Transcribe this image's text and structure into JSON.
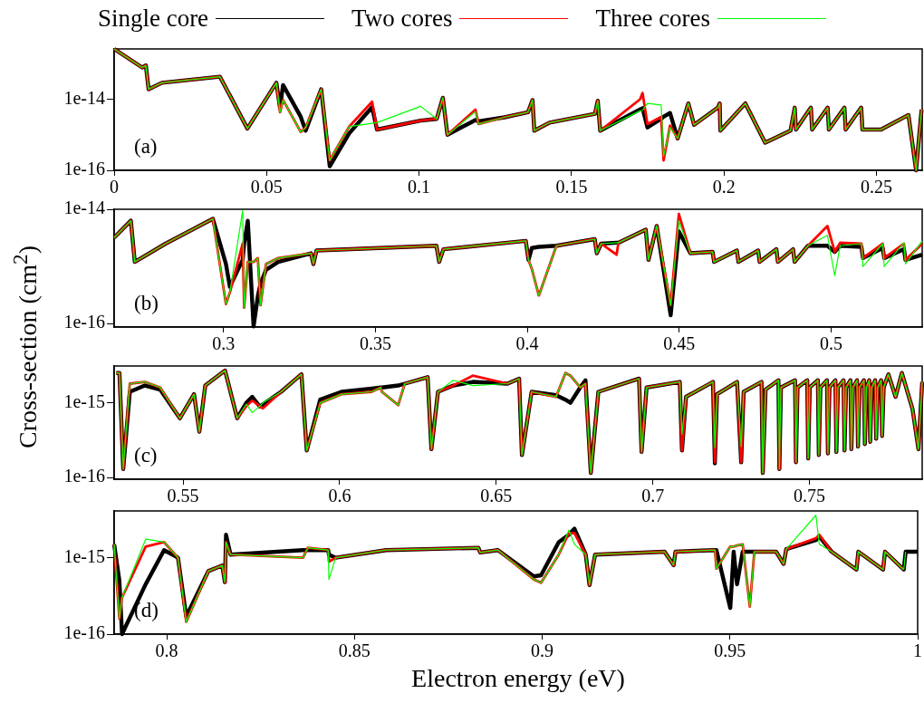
{
  "chart_data": [
    {
      "type": "line",
      "ylabel": "Cross-section (cm$^{2}$)",
      "legend": "top",
      "log": "y",
      "grid": false,
      "annotations": [
        "(a)"
      ],
      "xlim": [
        0,
        0.265
      ],
      "xticks": [
        0,
        0.05,
        0.1,
        0.15,
        0.2,
        0.25
      ],
      "ylim": [
        1e-16,
        2.6e-13
      ],
      "yticks": [
        1e-16,
        1e-14
      ],
      "x": [
        0,
        0.0092,
        0.0104,
        0.0113,
        0.0157,
        0.0347,
        0.0437,
        0.0532,
        0.0544,
        0.0554,
        0.0612,
        0.0628,
        0.0679,
        0.0707,
        0.0771,
        0.0846,
        0.0862,
        0.1005,
        0.1058,
        0.1078,
        0.1093,
        0.1185,
        0.1195,
        0.128,
        0.1357,
        0.1372,
        0.1378,
        0.1428,
        0.1577,
        0.1586,
        0.1594,
        0.1725,
        0.1733,
        0.1749,
        0.1794,
        0.1802,
        0.1823,
        0.1848,
        0.1883,
        0.1902,
        0.198,
        0.1986,
        0.1988,
        0.207,
        0.2135,
        0.2218,
        0.2232,
        0.2236,
        0.2285,
        0.2289,
        0.234,
        0.2344,
        0.2395,
        0.2399,
        0.245,
        0.2454,
        0.2515,
        0.2605,
        0.263,
        0.2648
      ],
      "series": [
        {
          "name": "Single core",
          "color": "#000000",
          "values": [
            2.6e-13,
            7.8e-14,
            8.9e-14,
            1.9e-14,
            2.9e-14,
            4.3e-14,
            1.5e-15,
            2.9e-14,
            5.8e-15,
            2.5e-14,
            3.2e-15,
            1.3e-15,
            1.9e-14,
            1.3e-16,
            1.1e-15,
            6e-15,
            1.4e-15,
            2.5e-15,
            2.8e-15,
            1.1e-14,
            1e-15,
            2.6e-15,
            2.4e-15,
            3.1e-15,
            4.3e-15,
            9.5e-15,
            1.3e-15,
            2.2e-15,
            3.9e-15,
            9.1e-15,
            1.3e-15,
            5.2e-15,
            5.6e-15,
            1.6e-15,
            2.8e-15,
            3.2e-15,
            4.1e-15,
            7.9e-16,
            7.6e-15,
            1.9e-15,
            5.8e-15,
            7.6e-15,
            1.3e-15,
            7.6e-15,
            6e-16,
            1.3e-15,
            5.8e-15,
            1.4e-15,
            5.8e-15,
            1.4e-15,
            5.8e-15,
            1.4e-15,
            5.8e-15,
            1.4e-15,
            5.8e-15,
            1.4e-15,
            1.4e-15,
            3.6e-15,
            1e-16,
            5.1e-15
          ]
        },
        {
          "name": "Two cores",
          "color": "#ff0000",
          "values": [
            2.6e-13,
            7.8e-14,
            8.9e-14,
            1.9e-14,
            2.9e-14,
            4.3e-14,
            1.5e-15,
            2.9e-14,
            4.3e-15,
            9.5e-15,
            1.2e-15,
            1.6e-15,
            1.9e-14,
            1.9e-16,
            1.7e-15,
            8.5e-15,
            1.4e-15,
            2.5e-15,
            2.8e-15,
            1.1e-14,
            1e-15,
            5.1e-15,
            2e-15,
            3.1e-15,
            4.3e-15,
            9.5e-15,
            1.3e-15,
            2.2e-15,
            3.9e-15,
            9.1e-15,
            1.3e-15,
            1e-14,
            1.5e-14,
            2e-15,
            3.2e-15,
            1.9e-16,
            1.8e-15,
            7.9e-16,
            7.6e-15,
            1.9e-15,
            5.8e-15,
            7.6e-15,
            1.3e-15,
            7.6e-15,
            6e-16,
            1.3e-15,
            5.8e-15,
            1.4e-15,
            5.8e-15,
            1.4e-15,
            5.8e-15,
            1.4e-15,
            5.8e-15,
            1.4e-15,
            5.8e-15,
            1.4e-15,
            1.4e-15,
            3.6e-15,
            1e-16,
            5.1e-15
          ]
        },
        {
          "name": "Three cores",
          "color": "#00ff00",
          "values": [
            2.6e-13,
            7.8e-14,
            8.9e-14,
            1.9e-14,
            2.9e-14,
            4.3e-14,
            1.5e-15,
            2.9e-14,
            4.3e-15,
            9.5e-15,
            1.2e-15,
            1.6e-15,
            1.9e-14,
            1.9e-16,
            1.7e-15,
            2.1e-15,
            2.2e-15,
            6.3e-15,
            2.8e-15,
            1.1e-14,
            1e-15,
            4.5e-15,
            2e-15,
            3.1e-15,
            4.3e-15,
            9.5e-15,
            1.3e-15,
            2.2e-15,
            3.9e-15,
            9.1e-15,
            1.3e-15,
            4.7e-15,
            4.8e-15,
            7.6e-15,
            6.9e-15,
            2.5e-16,
            1.6e-15,
            7.9e-16,
            7.6e-15,
            1.9e-15,
            5.8e-15,
            7.6e-15,
            1.3e-15,
            7.6e-15,
            6e-16,
            1.3e-15,
            5.8e-15,
            1.4e-15,
            5.8e-15,
            1.4e-15,
            5.8e-15,
            1.4e-15,
            5.8e-15,
            1.4e-15,
            5.8e-15,
            1.4e-15,
            1.4e-15,
            3.6e-15,
            1e-16,
            5.1e-15
          ]
        }
      ]
    },
    {
      "type": "line",
      "log": "y",
      "grid": false,
      "annotations": [
        "(b)"
      ],
      "xlim": [
        0.264,
        0.53
      ],
      "xticks": [
        0.3,
        0.35,
        0.4,
        0.45,
        0.5
      ],
      "ylim": [
        8.7e-17,
        1e-14
      ],
      "yticks": [
        1e-16,
        1e-14
      ],
      "x": [
        0.264,
        0.2695,
        0.2708,
        0.2809,
        0.2965,
        0.3008,
        0.3021,
        0.3063,
        0.3068,
        0.308,
        0.3099,
        0.3113,
        0.3122,
        0.314,
        0.318,
        0.3288,
        0.3296,
        0.3306,
        0.3701,
        0.371,
        0.3724,
        0.3995,
        0.4004,
        0.4015,
        0.4038,
        0.4096,
        0.4222,
        0.4229,
        0.4243,
        0.4294,
        0.43,
        0.439,
        0.4399,
        0.4426,
        0.4472,
        0.4499,
        0.4537,
        0.461,
        0.4615,
        0.469,
        0.4695,
        0.476,
        0.4765,
        0.482,
        0.4825,
        0.4875,
        0.488,
        0.4924,
        0.4988,
        0.5012,
        0.503,
        0.51,
        0.5105,
        0.517,
        0.5175,
        0.524,
        0.5245,
        0.53
      ],
      "series": [
        {
          "color": "#000000",
          "values": [
            3.2e-15,
            6.3e-15,
            1.2e-15,
            2.5e-15,
            6.8e-15,
            1.1e-15,
            4.4e-16,
            1.3e-15,
            2.5e-15,
            6.3e-15,
            8.9e-17,
            3e-16,
            5e-16,
            8.7e-16,
            1.2e-15,
            1.7e-15,
            1.1e-15,
            1.9e-15,
            2.3e-15,
            1.2e-15,
            2e-15,
            2.8e-15,
            1.3e-15,
            2.1e-15,
            2.2e-15,
            2.3e-15,
            3e-15,
            1.7e-15,
            2.5e-15,
            2.6e-15,
            2.6e-15,
            4.4e-15,
            1.3e-15,
            5.1e-15,
            1.4e-16,
            4.1e-15,
            1.7e-15,
            1.8e-15,
            1.2e-15,
            1.9e-15,
            1.2e-15,
            1.9e-15,
            1.2e-15,
            2e-15,
            1.2e-15,
            2e-15,
            1.2e-15,
            2.3e-15,
            2.3e-15,
            1.8e-15,
            2.3e-15,
            2.2e-15,
            1.4e-15,
            2.1e-15,
            1.4e-15,
            2e-15,
            1.3e-15,
            1.6e-15
          ]
        },
        {
          "color": "#ff0000",
          "values": [
            3.2e-15,
            6.3e-15,
            1.2e-15,
            2.5e-15,
            6.8e-15,
            2.2e-16,
            3.5e-16,
            2.5e-15,
            1.9e-16,
            1.2e-15,
            1.2e-15,
            1.4e-15,
            2.1e-16,
            1.1e-15,
            1.4e-15,
            1.7e-15,
            1.1e-15,
            1.9e-15,
            2.3e-15,
            1.2e-15,
            2e-15,
            2.8e-15,
            1.3e-15,
            9e-16,
            3.1e-16,
            2.3e-15,
            3e-15,
            1.7e-15,
            2.5e-15,
            1.6e-15,
            2.6e-15,
            4.4e-15,
            1.3e-15,
            5.1e-15,
            2.1e-16,
            8.3e-15,
            1.7e-15,
            1.8e-15,
            1.2e-15,
            1.9e-15,
            1.2e-15,
            1.9e-15,
            1.2e-15,
            2e-15,
            1.2e-15,
            2e-15,
            1.2e-15,
            2.3e-15,
            5.1e-15,
            1.8e-15,
            2.6e-15,
            2.5e-15,
            1.4e-15,
            2.5e-15,
            1.4e-15,
            2.5e-15,
            1.3e-15,
            2.5e-15
          ]
        },
        {
          "color": "#00ff00",
          "values": [
            3.2e-15,
            6.3e-15,
            1.2e-15,
            2.5e-15,
            6.8e-15,
            2.2e-16,
            3.5e-16,
            9.5e-15,
            1.9e-16,
            1.2e-15,
            1.2e-15,
            1.4e-15,
            2.1e-16,
            1.1e-15,
            1.4e-15,
            1.7e-15,
            1.1e-15,
            1.9e-15,
            2.3e-15,
            1.2e-15,
            2e-15,
            2.8e-15,
            1.3e-15,
            9e-16,
            3.1e-16,
            2.3e-15,
            3e-15,
            1.7e-15,
            2.5e-15,
            2.6e-15,
            2.6e-15,
            4.4e-15,
            1.3e-15,
            5.1e-15,
            2.1e-16,
            6.3e-15,
            1.7e-15,
            1.8e-15,
            1.2e-15,
            1.9e-15,
            1.2e-15,
            1.9e-15,
            1.2e-15,
            2e-15,
            1.2e-15,
            2e-15,
            1.2e-15,
            2.3e-15,
            3.5e-15,
            6.9e-16,
            2.3e-15,
            2.5e-15,
            1e-15,
            2.5e-15,
            1e-15,
            2.6e-15,
            1.1e-15,
            2.8e-15
          ]
        }
      ]
    },
    {
      "type": "line",
      "log": "y",
      "grid": false,
      "annotations": [
        "(c)"
      ],
      "xlim": [
        0.528,
        0.786
      ],
      "xticks": [
        0.55,
        0.6,
        0.65,
        0.7,
        0.75
      ],
      "ylim": [
        9.5e-17,
        3.1e-15
      ],
      "yticks": [
        1e-16,
        1e-15
      ],
      "x": [
        0.5287,
        0.5297,
        0.5309,
        0.533,
        0.5378,
        0.5427,
        0.549,
        0.5535,
        0.5552,
        0.5571,
        0.5634,
        0.5673,
        0.5702,
        0.5721,
        0.5745,
        0.5755,
        0.5813,
        0.5878,
        0.5895,
        0.5938,
        0.6006,
        0.6102,
        0.6131,
        0.6135,
        0.6187,
        0.6208,
        0.6281,
        0.6293,
        0.6314,
        0.6363,
        0.6425,
        0.6536,
        0.6573,
        0.6582,
        0.6613,
        0.6691,
        0.6721,
        0.6737,
        0.6768,
        0.6785,
        0.6802,
        0.6826,
        0.6956,
        0.6964,
        0.698,
        0.7086,
        0.7093,
        0.7106,
        0.7192,
        0.7198,
        0.7205,
        0.7269,
        0.7282,
        0.729,
        0.7347,
        0.7351,
        0.736,
        0.7401,
        0.7404,
        0.7409,
        0.7454,
        0.7457,
        0.7462,
        0.7493,
        0.7496,
        0.7501,
        0.7527,
        0.753,
        0.7535,
        0.7556,
        0.7559,
        0.7564,
        0.7583,
        0.7586,
        0.7591,
        0.7609,
        0.7612,
        0.7617,
        0.7631,
        0.7634,
        0.7639,
        0.7652,
        0.7655,
        0.766,
        0.7674,
        0.7677,
        0.7682,
        0.7691,
        0.7694,
        0.7699,
        0.771,
        0.7713,
        0.7718,
        0.7729,
        0.7732,
        0.7737,
        0.7752,
        0.7775,
        0.7795,
        0.7829,
        0.7848,
        0.786
      ],
      "series": [
        {
          "color": "#000000",
          "values": [
            2.5e-15,
            2.5e-15,
            1.3e-16,
            1.4e-15,
            1.7e-15,
            1.5e-15,
            6.2e-16,
            1.3e-15,
            4.1e-16,
            1.7e-15,
            2.7e-15,
            6.2e-16,
            1e-15,
            1.2e-15,
            8.9e-16,
            9.5e-16,
            1.4e-15,
            2.4e-15,
            2.3e-16,
            1.1e-15,
            1.4e-15,
            1.55e-15,
            1.6e-15,
            1.6e-15,
            1.7e-15,
            1.8e-15,
            2.2e-15,
            2.4e-16,
            1.4e-15,
            1.7e-15,
            1.9e-15,
            1.8e-15,
            2.1e-15,
            2e-16,
            1.4e-15,
            1.26e-15,
            1.1e-15,
            1e-15,
            1.6e-15,
            2e-15,
            1.15e-16,
            1.4e-15,
            2.1e-15,
            2.2e-16,
            1.6e-15,
            1.9e-15,
            2.3e-16,
            1.2e-15,
            1.9e-15,
            1.55e-16,
            1.3e-15,
            1.9e-15,
            1.6e-16,
            1.4e-15,
            1.9e-15,
            1.15e-16,
            1.5e-15,
            2e-15,
            1.3e-16,
            1.6e-15,
            2e-15,
            1.6e-16,
            1.6e-15,
            2e-15,
            1.8e-16,
            1.6e-15,
            2e-15,
            2e-16,
            1.6e-15,
            2e-15,
            2.1e-16,
            1.6e-15,
            2e-15,
            2.2e-16,
            1.6e-15,
            2e-15,
            2.3e-16,
            1.6e-15,
            2e-15,
            2.4e-16,
            1.6e-15,
            2e-15,
            2.6e-16,
            1.6e-15,
            2e-15,
            2.8e-16,
            1.6e-15,
            2e-15,
            3e-16,
            1.6e-15,
            2e-15,
            3.3e-16,
            1.6e-15,
            2e-15,
            3.6e-16,
            1.6e-15,
            2.4e-15,
            1.2e-15,
            2.5e-15,
            8.3e-16,
            2.4e-16,
            1.9e-15
          ]
        },
        {
          "color": "#ff0000",
          "values": [
            2.5e-15,
            2.5e-15,
            1.3e-16,
            1.8e-15,
            1.9e-15,
            1.6e-15,
            6.2e-16,
            1.3e-15,
            4.1e-16,
            1.7e-15,
            2.7e-15,
            6.2e-16,
            9e-16,
            1.07e-15,
            9e-16,
            8.4e-16,
            1.4e-15,
            2.4e-15,
            2.3e-16,
            1e-15,
            1.3e-15,
            1.4e-15,
            1.6e-15,
            1.4e-15,
            9.3e-16,
            1.8e-15,
            2.2e-15,
            2.4e-16,
            1.4e-15,
            1.7e-15,
            2.3e-15,
            1.8e-15,
            2.1e-15,
            2e-16,
            1.4e-15,
            1.2e-15,
            2.5e-15,
            2.3e-15,
            1.6e-15,
            1.8e-15,
            1.15e-16,
            1.4e-15,
            2.1e-15,
            2.2e-16,
            1.6e-15,
            1.9e-15,
            2.3e-16,
            1.2e-15,
            1.9e-15,
            1.6e-16,
            1.3e-15,
            1.9e-15,
            1.6e-16,
            1.4e-15,
            1.9e-15,
            1.15e-16,
            1.5e-15,
            2e-15,
            1.3e-16,
            1.6e-15,
            2e-15,
            1.6e-16,
            1.6e-15,
            2e-15,
            1.8e-16,
            1.6e-15,
            2e-15,
            2e-16,
            1.6e-15,
            2e-15,
            2.1e-16,
            1.6e-15,
            2e-15,
            2.2e-16,
            1.6e-15,
            2e-15,
            2.3e-16,
            1.6e-15,
            2e-15,
            2.4e-16,
            1.6e-15,
            2e-15,
            2.6e-16,
            1.6e-15,
            2e-15,
            2.8e-16,
            1.6e-15,
            2e-15,
            3e-16,
            1.6e-15,
            2e-15,
            3.3e-16,
            1.6e-15,
            2e-15,
            3.6e-16,
            1.6e-15,
            2.4e-15,
            1.2e-15,
            2.5e-15,
            8.3e-16,
            2.4e-16,
            1.9e-15
          ]
        },
        {
          "color": "#00ff00",
          "values": [
            2.5e-15,
            2.5e-15,
            1.3e-16,
            1.8e-15,
            1.9e-15,
            1.6e-15,
            6.2e-16,
            1.3e-15,
            4.1e-16,
            1.7e-15,
            2.7e-15,
            6.2e-16,
            9.6e-16,
            7.4e-16,
            9e-16,
            1e-15,
            1.4e-15,
            2.4e-15,
            2.3e-16,
            1e-15,
            1.3e-15,
            1.4e-15,
            1.6e-15,
            1.4e-15,
            9.3e-16,
            1.8e-15,
            2.2e-15,
            2.4e-16,
            1.4e-15,
            2e-15,
            1.7e-15,
            1.8e-15,
            2.1e-15,
            2e-16,
            1.4e-15,
            1.2e-15,
            2.5e-15,
            2.3e-15,
            1.6e-15,
            1.8e-15,
            1.15e-16,
            1.4e-15,
            2.1e-15,
            2.2e-16,
            1.6e-15,
            1.9e-15,
            3.8e-16,
            1.2e-15,
            1.9e-15,
            2.5e-16,
            1.3e-15,
            1.9e-15,
            2.6e-16,
            1.4e-15,
            1.9e-15,
            1.15e-16,
            1.5e-15,
            2e-15,
            1.3e-16,
            1.6e-15,
            2e-15,
            1.6e-16,
            1.6e-15,
            2e-15,
            1.8e-16,
            1.6e-15,
            2e-15,
            2e-16,
            1.6e-15,
            2e-15,
            2.1e-16,
            1.6e-15,
            2e-15,
            2.2e-16,
            1.6e-15,
            2e-15,
            2.3e-16,
            1.6e-15,
            2e-15,
            2.4e-16,
            1.6e-15,
            2e-15,
            2.6e-16,
            1.6e-15,
            2e-15,
            2.8e-16,
            1.6e-15,
            2e-15,
            3e-16,
            1.6e-15,
            2e-15,
            3.3e-16,
            1.6e-15,
            2e-15,
            3.6e-16,
            1.6e-15,
            2.4e-15,
            1.2e-15,
            2.5e-15,
            8.3e-16,
            2.4e-16,
            1.9e-15
          ]
        }
      ]
    },
    {
      "type": "line",
      "xlabel": "Electron energy (eV)",
      "log": "y",
      "grid": false,
      "annotations": [
        "(d)"
      ],
      "xlim": [
        0.786,
        1
      ],
      "xticks": [
        0.8,
        0.85,
        0.9,
        0.95,
        1
      ],
      "ylim": [
        1e-16,
        4.1e-15
      ],
      "yticks": [
        1e-16,
        1e-15
      ],
      "x": [
        0.786,
        0.7874,
        0.7881,
        0.7944,
        0.7993,
        0.803,
        0.8052,
        0.8111,
        0.8148,
        0.8155,
        0.8158,
        0.817,
        0.8363,
        0.8376,
        0.843,
        0.8432,
        0.845,
        0.8585,
        0.883,
        0.8835,
        0.8882,
        0.8978,
        0.8997,
        0.9044,
        0.9071,
        0.9086,
        0.9116,
        0.9126,
        0.9141,
        0.9326,
        0.935,
        0.9355,
        0.946,
        0.9464,
        0.9501,
        0.951,
        0.9519,
        0.9534,
        0.9553,
        0.9565,
        0.9623,
        0.9643,
        0.965,
        0.9729,
        0.9738,
        0.9771,
        0.9837,
        0.9842,
        0.9908,
        0.9913,
        0.9963,
        0.9968,
        1
      ],
      "series": [
        {
          "color": "#000000",
          "values": [
            1.5e-15,
            5e-16,
            1e-16,
            4.5e-16,
            1.26e-15,
            1e-15,
            1.7e-16,
            6.7e-16,
            7.9e-16,
            4.8e-16,
            2e-15,
            1.1e-15,
            1.26e-15,
            1.26e-15,
            1.26e-15,
            1.1e-15,
            1e-15,
            1.26e-15,
            1.35e-15,
            1.17e-15,
            1.26e-15,
            5.7e-16,
            5.9e-16,
            1.6e-15,
            2e-15,
            2.4e-15,
            1.1e-15,
            4.4e-16,
            1.1e-15,
            1.2e-15,
            8e-16,
            1.2e-15,
            1.26e-15,
            1.26e-15,
            2.2e-16,
            1.2e-15,
            4.5e-16,
            1.2e-15,
            1.2e-15,
            1.2e-15,
            1.2e-15,
            8.3e-16,
            1.3e-15,
            1.7e-15,
            1.9e-15,
            1.2e-15,
            7e-16,
            1.2e-15,
            7e-16,
            1.2e-15,
            7e-16,
            1.2e-15,
            1.2e-15
          ]
        },
        {
          "color": "#ff0000",
          "values": [
            1.5e-15,
            1.6e-16,
            3e-16,
            1.4e-15,
            1.6e-15,
            1e-15,
            1.45e-16,
            6.7e-16,
            7.9e-16,
            4.8e-16,
            1.6e-15,
            1.1e-15,
            1e-15,
            1.35e-15,
            1.26e-15,
            8.9e-16,
            1e-15,
            1.26e-15,
            1.35e-15,
            1.17e-15,
            1.26e-15,
            5.2e-16,
            4.7e-16,
            1.1e-15,
            2.1e-15,
            2.1e-15,
            1.1e-15,
            4.4e-16,
            1.1e-15,
            1.2e-15,
            8e-16,
            1.2e-15,
            1.26e-15,
            7.2e-16,
            1.4e-15,
            1.4e-15,
            1.45e-15,
            1.5e-15,
            2.3e-16,
            1.2e-15,
            1.2e-15,
            8.3e-16,
            1.3e-15,
            1.8e-15,
            2e-15,
            1.2e-15,
            7e-16,
            1.2e-15,
            7e-16,
            1.2e-15,
            7e-16,
            null,
            null
          ]
        },
        {
          "color": "#00ff00",
          "values": [
            1.5e-15,
            1.6e-16,
            3e-16,
            1.75e-15,
            1.6e-15,
            1e-15,
            1.45e-16,
            6.7e-16,
            7.9e-16,
            4.8e-16,
            1.6e-15,
            1.1e-15,
            1e-15,
            1.35e-15,
            1.26e-15,
            5.2e-16,
            1e-15,
            1.26e-15,
            1.35e-15,
            1.17e-15,
            1.26e-15,
            5.2e-16,
            4.7e-16,
            1.1e-15,
            2.3e-15,
            1.5e-15,
            1.1e-15,
            4.4e-16,
            1.1e-15,
            1.2e-15,
            8e-16,
            1.2e-15,
            1.26e-15,
            7.2e-16,
            1.4e-15,
            1.4e-15,
            1.45e-15,
            1.5e-15,
            2.3e-16,
            1.2e-15,
            1.2e-15,
            8.3e-16,
            1.3e-15,
            3.6e-15,
            1.5e-15,
            1.2e-15,
            7e-16,
            1.2e-15,
            7e-16,
            1.2e-15,
            7e-16,
            1.2e-15,
            null
          ]
        }
      ]
    }
  ]
}
